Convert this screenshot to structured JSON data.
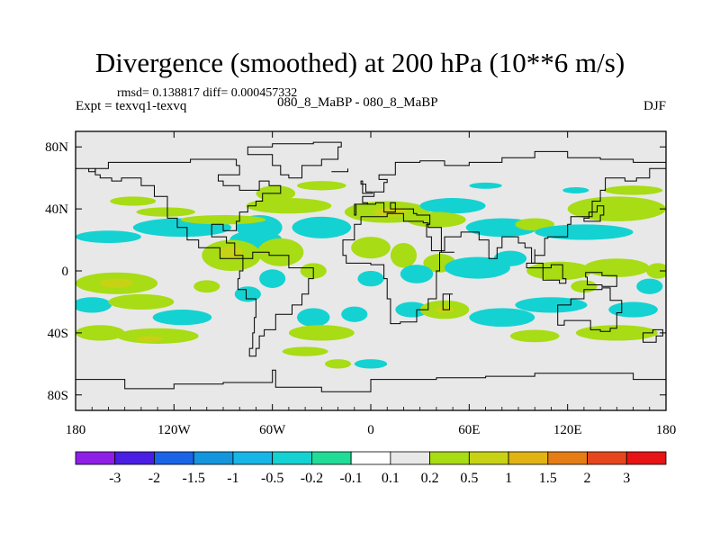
{
  "title": "Divergence (smoothed) at 200 hPa (10**6 m/s)",
  "stats": "rmsd= 0.138817 diff= 0.000457332",
  "experiment": "Expt = texvq1-texvq",
  "case_label": "080_8_MaBP - 080_8_MaBP",
  "season": "DJF",
  "chart_data": {
    "type": "heatmap",
    "title": "Divergence (smoothed) at 200 hPa (10**6 m/s)",
    "projection": "cylindrical equidistant",
    "x_range": [
      -180,
      180
    ],
    "y_range": [
      -90,
      90
    ],
    "x_ticks": [
      {
        "value": -180,
        "label": "180"
      },
      {
        "value": -120,
        "label": "120W"
      },
      {
        "value": -60,
        "label": "60W"
      },
      {
        "value": 0,
        "label": "0"
      },
      {
        "value": 60,
        "label": "60E"
      },
      {
        "value": 120,
        "label": "120E"
      },
      {
        "value": 180,
        "label": "180"
      }
    ],
    "y_ticks": [
      {
        "value": 80,
        "label": "80N"
      },
      {
        "value": 40,
        "label": "40N"
      },
      {
        "value": 0,
        "label": "0"
      },
      {
        "value": -40,
        "label": "40S"
      },
      {
        "value": -80,
        "label": "80S"
      }
    ],
    "colorbar": {
      "labels": [
        "-3",
        "-2",
        "-1.5",
        "-1",
        "-0.5",
        "-0.2",
        "-0.1",
        "0.1",
        "0.2",
        "0.5",
        "1",
        "1.5",
        "2",
        "3"
      ],
      "colors": [
        "#8f1fe6",
        "#4a1ee3",
        "#1a64e8",
        "#1496dc",
        "#18b6e6",
        "#14d2d2",
        "#20dc96",
        "#e8e8e8",
        "#a8dc14",
        "#c8d214",
        "#e1b414",
        "#e67d14",
        "#e6461e",
        "#e61414"
      ]
    },
    "field_patches": [
      {
        "lon": -160,
        "lat": 22,
        "rlon": 20,
        "rlat": 4,
        "level": "-0.2"
      },
      {
        "lon": -115,
        "lat": 28,
        "rlon": 30,
        "rlat": 6,
        "level": "-0.2"
      },
      {
        "lon": -125,
        "lat": 38,
        "rlon": 18,
        "rlat": 3,
        "level": "0.2"
      },
      {
        "lon": -145,
        "lat": 45,
        "rlon": 14,
        "rlat": 3,
        "level": "0.2"
      },
      {
        "lon": -70,
        "lat": 20,
        "rlon": 16,
        "rlat": 6,
        "level": "-0.2"
      },
      {
        "lon": -68,
        "lat": 28,
        "rlon": 14,
        "rlat": 8,
        "level": "-0.2"
      },
      {
        "lon": -50,
        "lat": 42,
        "rlon": 26,
        "rlat": 5,
        "level": "0.2"
      },
      {
        "lon": -58,
        "lat": 50,
        "rlon": 12,
        "rlat": 5,
        "level": "0.2"
      },
      {
        "lon": -30,
        "lat": 28,
        "rlon": 18,
        "rlat": 7,
        "level": "-0.2"
      },
      {
        "lon": -85,
        "lat": 10,
        "rlon": 18,
        "rlat": 10,
        "level": "0.2"
      },
      {
        "lon": -85,
        "lat": 12,
        "rlon": 7,
        "rlat": 4,
        "level": "0.5"
      },
      {
        "lon": -55,
        "lat": 12,
        "rlon": 14,
        "rlat": 9,
        "level": "0.2"
      },
      {
        "lon": -90,
        "lat": 33,
        "rlon": 26,
        "rlat": 3,
        "level": "0.2"
      },
      {
        "lon": 10,
        "lat": 38,
        "rlon": 26,
        "rlat": 7,
        "level": "0.2"
      },
      {
        "lon": 12,
        "lat": 38,
        "rlon": 10,
        "rlat": 3,
        "level": "0.5"
      },
      {
        "lon": 50,
        "lat": 42,
        "rlon": 20,
        "rlat": 5,
        "level": "-0.2"
      },
      {
        "lon": 40,
        "lat": 33,
        "rlon": 18,
        "rlat": 5,
        "level": "0.2"
      },
      {
        "lon": 80,
        "lat": 28,
        "rlon": 22,
        "rlat": 6,
        "level": "-0.2"
      },
      {
        "lon": 100,
        "lat": 30,
        "rlon": 12,
        "rlat": 4,
        "level": "0.2"
      },
      {
        "lon": 150,
        "lat": 40,
        "rlon": 30,
        "rlat": 8,
        "level": "0.2"
      },
      {
        "lon": 130,
        "lat": 25,
        "rlon": 30,
        "rlat": 5,
        "level": "-0.2"
      },
      {
        "lon": 160,
        "lat": 52,
        "rlon": 18,
        "rlat": 3,
        "level": "0.2"
      },
      {
        "lon": -30,
        "lat": 55,
        "rlon": 15,
        "rlat": 3,
        "level": "0.2"
      },
      {
        "lon": 70,
        "lat": 55,
        "rlon": 10,
        "rlat": 2,
        "level": "-0.2"
      },
      {
        "lon": 125,
        "lat": 52,
        "rlon": 8,
        "rlat": 2,
        "level": "-0.2"
      },
      {
        "lon": 0,
        "lat": 15,
        "rlon": 12,
        "rlat": 7,
        "level": "0.2"
      },
      {
        "lon": 20,
        "lat": 10,
        "rlon": 8,
        "rlat": 8,
        "level": "0.2"
      },
      {
        "lon": 42,
        "lat": 5,
        "rlon": 10,
        "rlat": 6,
        "level": "0.2"
      },
      {
        "lon": 28,
        "lat": -2,
        "rlon": 10,
        "rlat": 6,
        "level": "-0.2"
      },
      {
        "lon": 65,
        "lat": 2,
        "rlon": 20,
        "rlat": 7,
        "level": "-0.2"
      },
      {
        "lon": 85,
        "lat": 8,
        "rlon": 10,
        "rlat": 5,
        "level": "-0.2"
      },
      {
        "lon": 115,
        "lat": 0,
        "rlon": 20,
        "rlat": 6,
        "level": "0.2"
      },
      {
        "lon": 150,
        "lat": 2,
        "rlon": 20,
        "rlat": 6,
        "level": "0.2"
      },
      {
        "lon": 175,
        "lat": 0,
        "rlon": 7,
        "rlat": 5,
        "level": "0.2"
      },
      {
        "lon": -35,
        "lat": 0,
        "rlon": 8,
        "rlat": 5,
        "level": "0.2"
      },
      {
        "lon": 0,
        "lat": -5,
        "rlon": 8,
        "rlat": 5,
        "level": "-0.2"
      },
      {
        "lon": -155,
        "lat": -8,
        "rlon": 25,
        "rlat": 7,
        "level": "0.2"
      },
      {
        "lon": -155,
        "lat": -8,
        "rlon": 10,
        "rlat": 3,
        "level": "0.5"
      },
      {
        "lon": -170,
        "lat": -22,
        "rlon": 12,
        "rlat": 5,
        "level": "-0.2"
      },
      {
        "lon": -140,
        "lat": -20,
        "rlon": 20,
        "rlat": 5,
        "level": "0.2"
      },
      {
        "lon": -115,
        "lat": -30,
        "rlon": 18,
        "rlat": 5,
        "level": "-0.2"
      },
      {
        "lon": -100,
        "lat": -10,
        "rlon": 8,
        "rlat": 4,
        "level": "0.2"
      },
      {
        "lon": -75,
        "lat": -15,
        "rlon": 8,
        "rlat": 5,
        "level": "-0.2"
      },
      {
        "lon": -60,
        "lat": -5,
        "rlon": 8,
        "rlat": 6,
        "level": "-0.2"
      },
      {
        "lon": -130,
        "lat": -42,
        "rlon": 25,
        "rlat": 5,
        "level": "0.2"
      },
      {
        "lon": -135,
        "lat": -44,
        "rlon": 8,
        "rlat": 2,
        "level": "0.5"
      },
      {
        "lon": -165,
        "lat": -40,
        "rlon": 15,
        "rlat": 5,
        "level": "0.2"
      },
      {
        "lon": -35,
        "lat": -30,
        "rlon": 10,
        "rlat": 6,
        "level": "-0.2"
      },
      {
        "lon": -10,
        "lat": -28,
        "rlon": 8,
        "rlat": 5,
        "level": "-0.2"
      },
      {
        "lon": -30,
        "lat": -40,
        "rlon": 20,
        "rlat": 5,
        "level": "0.2"
      },
      {
        "lon": -40,
        "lat": -52,
        "rlon": 14,
        "rlat": 3,
        "level": "0.2"
      },
      {
        "lon": 25,
        "lat": -25,
        "rlon": 10,
        "rlat": 5,
        "level": "-0.2"
      },
      {
        "lon": 45,
        "lat": -25,
        "rlon": 15,
        "rlat": 6,
        "level": "0.2"
      },
      {
        "lon": 45,
        "lat": -25,
        "rlon": 6,
        "rlat": 2,
        "level": "0.5"
      },
      {
        "lon": 80,
        "lat": -30,
        "rlon": 20,
        "rlat": 6,
        "level": "-0.2"
      },
      {
        "lon": 110,
        "lat": -22,
        "rlon": 22,
        "rlat": 5,
        "level": "-0.2"
      },
      {
        "lon": 130,
        "lat": -10,
        "rlon": 8,
        "rlat": 4,
        "level": "0.2"
      },
      {
        "lon": 160,
        "lat": -25,
        "rlon": 15,
        "rlat": 5,
        "level": "-0.2"
      },
      {
        "lon": 170,
        "lat": -10,
        "rlon": 8,
        "rlat": 5,
        "level": "-0.2"
      },
      {
        "lon": 150,
        "lat": -40,
        "rlon": 25,
        "rlat": 5,
        "level": "0.2"
      },
      {
        "lon": 100,
        "lat": -42,
        "rlon": 15,
        "rlat": 4,
        "level": "0.2"
      },
      {
        "lon": 0,
        "lat": -60,
        "rlon": 10,
        "rlat": 3,
        "level": "-0.2"
      },
      {
        "lon": -20,
        "lat": -60,
        "rlon": 8,
        "rlat": 3,
        "level": "0.2"
      }
    ]
  }
}
